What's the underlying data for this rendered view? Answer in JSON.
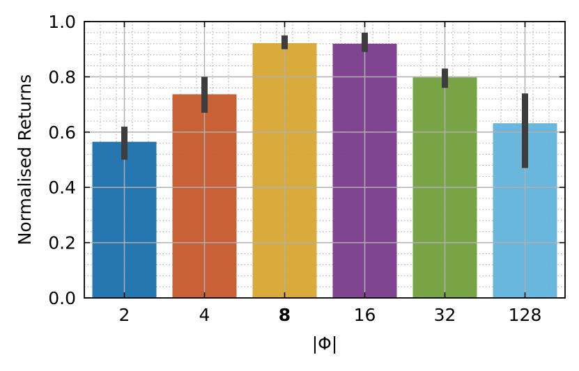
{
  "chart_data": {
    "type": "bar",
    "categories": [
      "2",
      "4",
      "8",
      "16",
      "32",
      "128"
    ],
    "highlighted_category": "8",
    "values": [
      0.565,
      0.737,
      0.922,
      0.92,
      0.798,
      0.632
    ],
    "error_low": [
      0.5,
      0.67,
      0.9,
      0.89,
      0.76,
      0.47
    ],
    "error_high": [
      0.62,
      0.8,
      0.95,
      0.96,
      0.83,
      0.74
    ],
    "colors": [
      "#1a6fab",
      "#c6592b",
      "#d7a632",
      "#783b8b",
      "#729f3c",
      "#62b3dc"
    ],
    "error_bar_color": "#3d3d3d",
    "xlabel": "|Φ|",
    "ylabel": "Normalised Returns",
    "ylim": [
      0,
      1.0
    ],
    "yticks": [
      "0.0",
      "0.2",
      "0.4",
      "0.6",
      "0.8",
      "1.0"
    ],
    "grid": {
      "major": true,
      "minor": true
    },
    "legend": "none"
  }
}
